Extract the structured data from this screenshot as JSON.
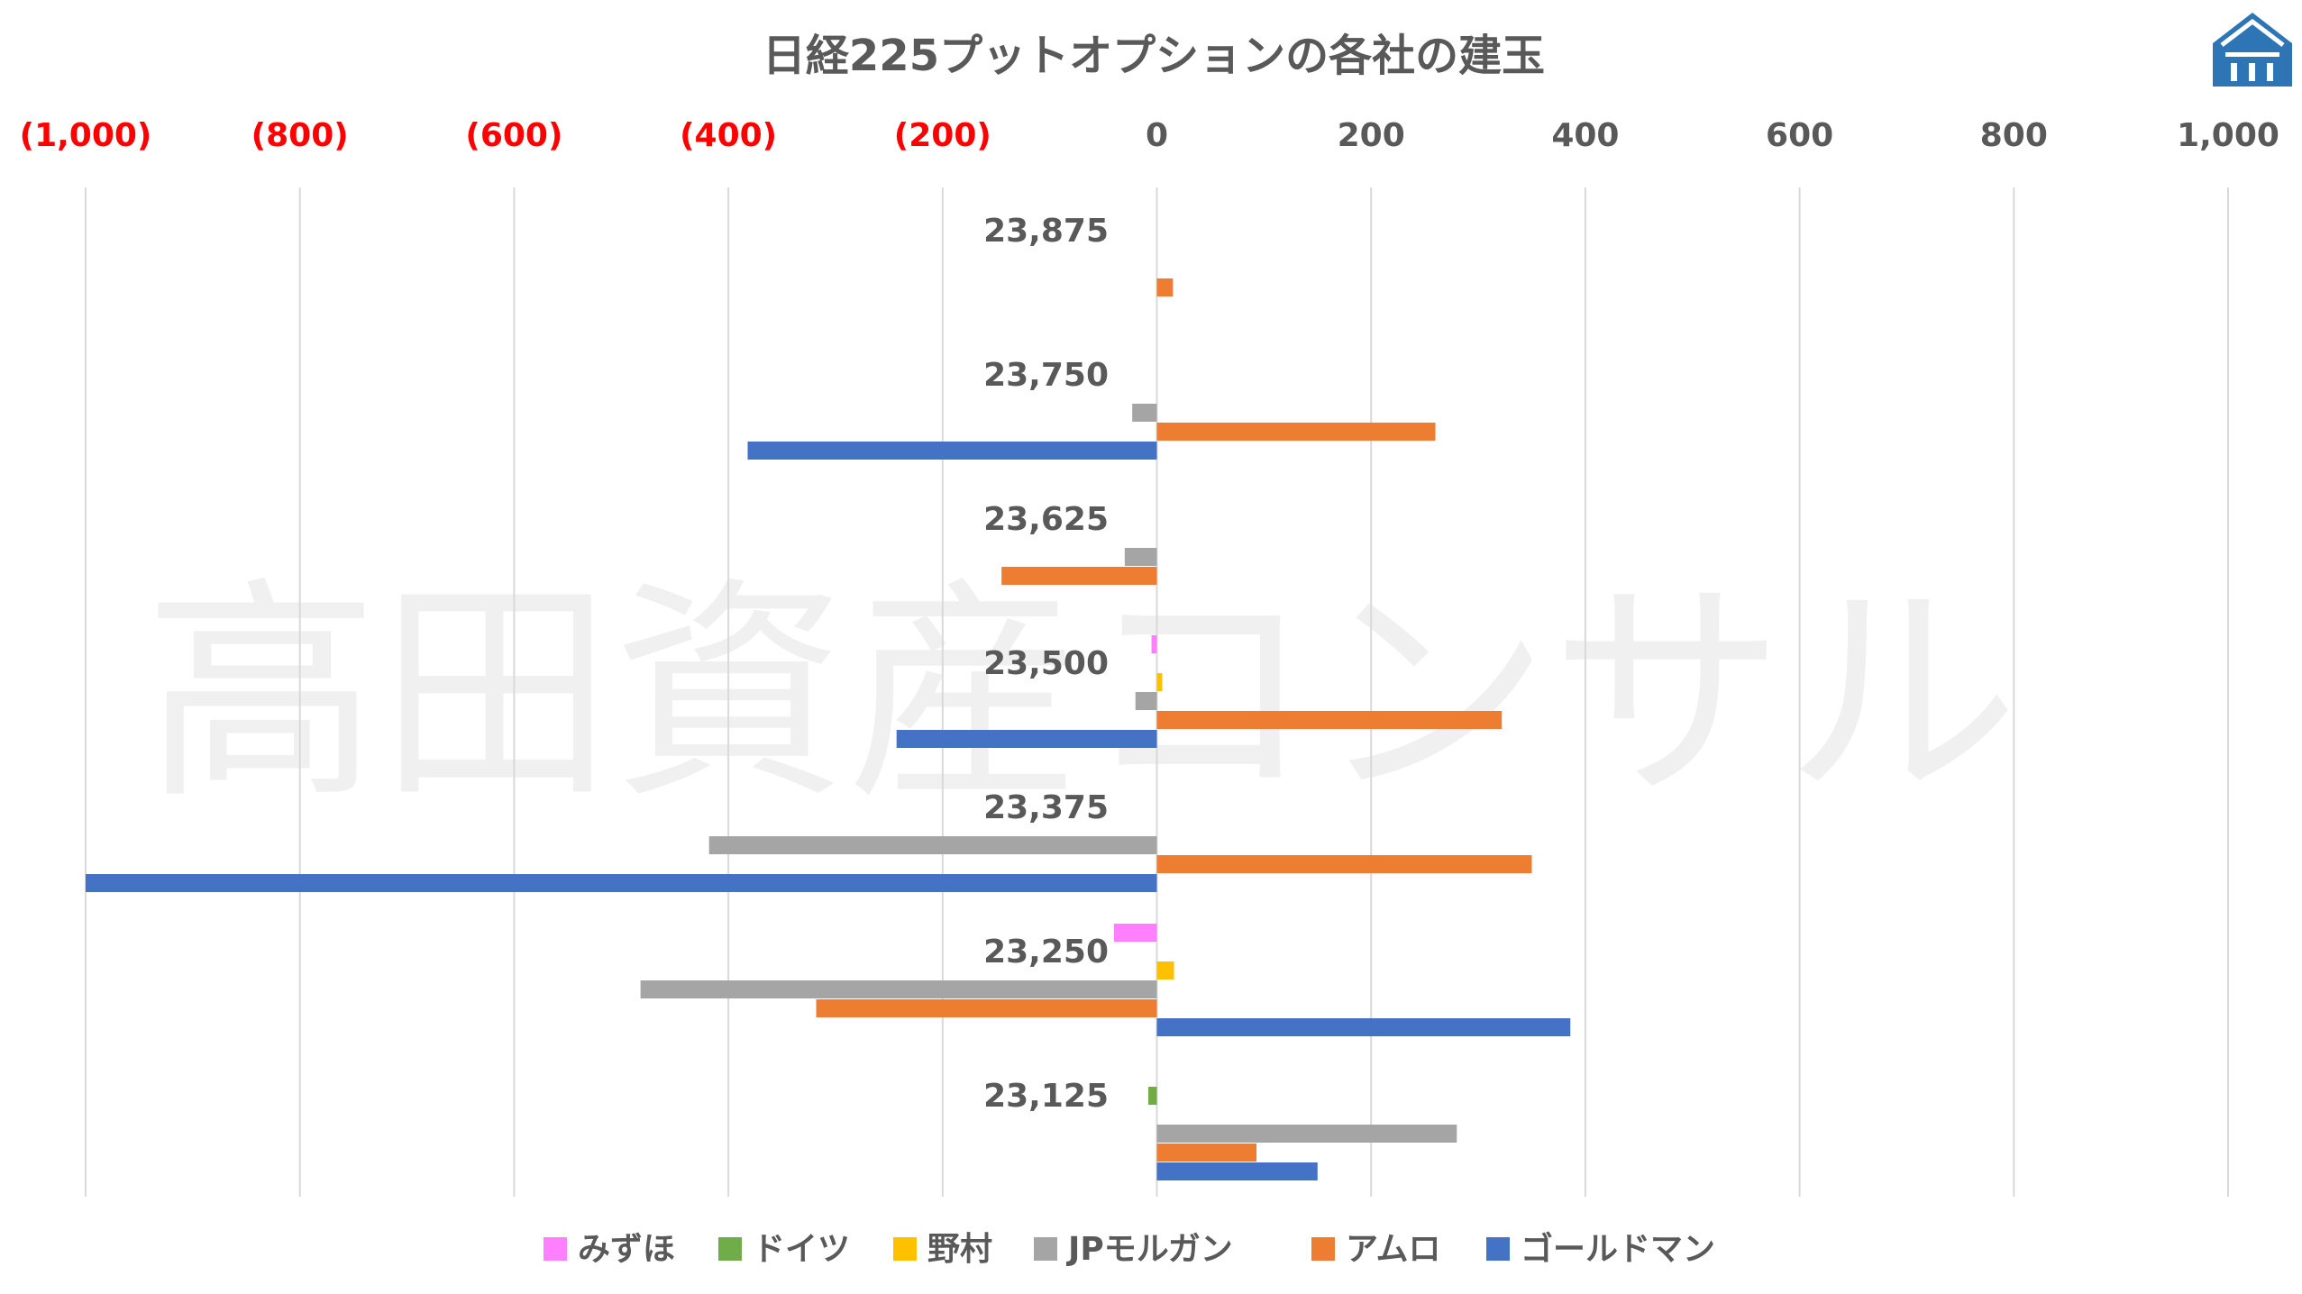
{
  "chart_data": {
    "type": "bar",
    "orientation": "horizontal",
    "title": "日経225プットオプションの各社の建玉",
    "watermark": "高田資産コンサル",
    "xlim": [
      -1000,
      1000
    ],
    "x_ticks": [
      -1000,
      -800,
      -600,
      -400,
      -200,
      0,
      200,
      400,
      600,
      800,
      1000
    ],
    "x_tick_labels": [
      "(1,000)",
      "(800)",
      "(600)",
      "(400)",
      "(200)",
      "0",
      "200",
      "400",
      "600",
      "800",
      "1,000"
    ],
    "negative_tick_color": "#ff0000",
    "positive_tick_color": "#595959",
    "grid": true,
    "legend_position": "bottom",
    "categories": [
      "23,875",
      "23,750",
      "23,625",
      "23,500",
      "23,375",
      "23,250",
      "23,125"
    ],
    "series": [
      {
        "name": "みずほ",
        "color": "#ff80ff",
        "values": [
          0,
          0,
          0,
          -5,
          0,
          -40,
          0
        ]
      },
      {
        "name": "ドイツ",
        "color": "#70ad47",
        "values": [
          0,
          0,
          0,
          0,
          0,
          0,
          -8
        ]
      },
      {
        "name": "野村",
        "color": "#ffc000",
        "values": [
          0,
          0,
          0,
          5,
          0,
          16,
          0
        ]
      },
      {
        "name": "JPモルガン",
        "color": "#a5a5a5",
        "values": [
          0,
          -23,
          -30,
          -20,
          -418,
          -482,
          280
        ]
      },
      {
        "name": "アムロ",
        "color": "#ed7d31",
        "values": [
          15,
          260,
          -145,
          322,
          350,
          -318,
          93
        ]
      },
      {
        "name": "ゴールドマン",
        "color": "#4472c4",
        "values": [
          0,
          -382,
          0,
          -243,
          -1000,
          386,
          150
        ]
      }
    ]
  },
  "logo": {
    "name": "company-logo",
    "color": "#2e75b6"
  }
}
